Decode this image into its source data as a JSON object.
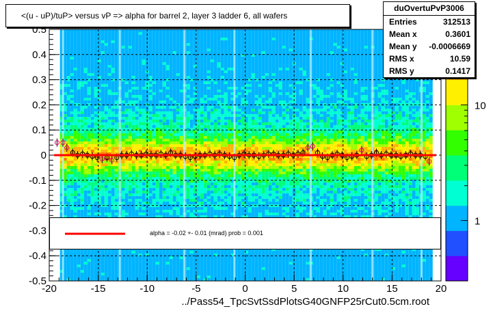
{
  "title": "<(u - uP)/tuP> versus  vP => alpha for barrel 2, layer 3 ladder 6, all wafers",
  "stats": {
    "name": "duOvertuPvP3006",
    "rows": [
      {
        "key": "Entries",
        "value": "312513"
      },
      {
        "key": "Mean x",
        "value": "0.3601"
      },
      {
        "key": "Mean y",
        "value": "-0.0006669"
      },
      {
        "key": "RMS x",
        "value": "10.59"
      },
      {
        "key": "RMS y",
        "value": "0.1417"
      }
    ]
  },
  "fit_legend": "alpha =   -0.02 +-  0.01 (mrad) prob = 0.001",
  "x_axis_label": "../Pass54_TpcSvtSsdPlotsG40GNFP25rCut0.5cm.root",
  "colors": {
    "fit_line": "#ff0000",
    "palette": [
      "#6600ff",
      "#2050ff",
      "#00b4ff",
      "#00ffd2",
      "#00ff78",
      "#32ff00",
      "#a0ff00",
      "#fff000",
      "#ffb400",
      "#ff7800"
    ]
  },
  "chart_data": {
    "type": "heatmap",
    "xlim": [
      -20,
      20
    ],
    "ylim": [
      -0.5,
      0.5
    ],
    "x_ticks": [
      -20,
      -15,
      -10,
      -5,
      0,
      5,
      10,
      15,
      20
    ],
    "y_ticks": [
      -0.5,
      -0.4,
      -0.3,
      -0.2,
      -0.1,
      0,
      0.1,
      0.2,
      0.3,
      0.4,
      0.5
    ],
    "x_tick_labels": [
      "-20",
      "-15",
      "-10",
      "-5",
      "0",
      "5",
      "10",
      "15",
      "20"
    ],
    "y_tick_labels": [
      "-0.5",
      "-0.4",
      "-0.3",
      "-0.2",
      "-0.1",
      "0",
      "0.1",
      "0.2",
      "0.3",
      "0.4",
      "0.5"
    ],
    "grid": true,
    "colorbar": {
      "scale": "log",
      "tick_labels": [
        "1",
        "10"
      ],
      "tick_values": [
        1,
        10
      ],
      "range": [
        0.3,
        45
      ]
    },
    "fit_line": {
      "x": [
        -19.5,
        19.5
      ],
      "y": [
        0.0,
        0.0
      ]
    },
    "profile_points": {
      "x": [
        -19.2,
        -18.6,
        -18.2,
        -17.6,
        -17.1,
        -16.6,
        -16.1,
        -15.6,
        -15.1,
        -14.6,
        -14.1,
        -13.6,
        -13.1,
        -12.6,
        -12.1,
        -11.6,
        -11.1,
        -10.6,
        -10.1,
        -9.6,
        -9.1,
        -8.6,
        -8.1,
        -7.6,
        -7.1,
        -6.6,
        -6.1,
        -5.6,
        -5.1,
        -4.6,
        -4.1,
        -3.6,
        -3.1,
        -2.6,
        -2.1,
        -1.6,
        -1.1,
        -0.6,
        -0.1,
        0.4,
        0.9,
        1.4,
        1.9,
        2.4,
        2.9,
        3.4,
        3.9,
        4.4,
        4.9,
        5.4,
        5.9,
        6.4,
        6.9,
        7.4,
        7.9,
        8.4,
        8.9,
        9.4,
        9.9,
        10.4,
        10.9,
        11.4,
        11.9,
        12.4,
        12.9,
        13.4,
        13.9,
        14.4,
        14.9,
        15.4,
        15.9,
        16.4,
        16.9,
        17.4,
        17.9,
        18.4,
        18.8
      ],
      "y": [
        0.05,
        0.05,
        0.03,
        0.01,
        0.0,
        0.005,
        0.0,
        -0.005,
        -0.01,
        -0.015,
        -0.01,
        -0.02,
        -0.01,
        0.0,
        0.0,
        0.005,
        0.0,
        0.0,
        0.005,
        0.0,
        0.0,
        0.005,
        0.0,
        0.01,
        0.0,
        0.0,
        -0.005,
        -0.01,
        -0.005,
        0.0,
        0.0,
        0.005,
        0.0,
        0.005,
        0.0,
        -0.005,
        -0.01,
        0.0,
        0.005,
        0.0,
        0.0,
        -0.005,
        0.0,
        0.005,
        0.005,
        0.0,
        0.0,
        0.005,
        0.0,
        0.005,
        0.01,
        0.03,
        0.035,
        0.01,
        -0.005,
        -0.01,
        0.0,
        0.005,
        0.0,
        -0.01,
        -0.005,
        0.0,
        0.02,
        -0.005,
        0.0,
        0.01,
        0.0,
        0.005,
        0.0,
        0.0,
        -0.005,
        0.0,
        0.005,
        0.0,
        0.0,
        -0.005,
        -0.025
      ]
    }
  }
}
